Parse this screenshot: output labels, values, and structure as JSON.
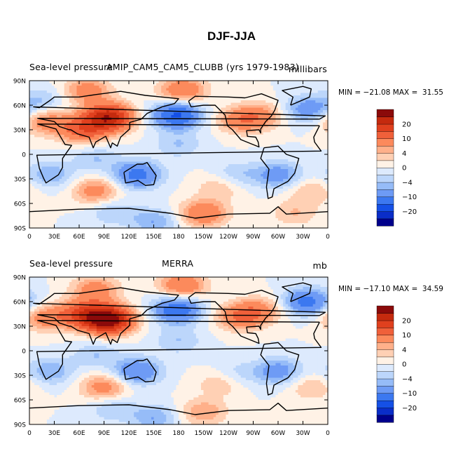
{
  "figure": {
    "title": "DJF-JJA"
  },
  "chart_data": [
    {
      "type": "heatmap",
      "title_left": "Sea-level pressure",
      "title_center": "AMIP_CAM5_CAM5_CLUBB (yrs 1979-1983)",
      "title_right": "millibars",
      "min_max_text": "MIN = −21.08 MAX =  31.55",
      "min": -21.08,
      "max": 31.55,
      "xlabel": "",
      "ylabel": "",
      "x_ticks": [
        "0",
        "30E",
        "60E",
        "90E",
        "120E",
        "150E",
        "180",
        "150W",
        "120W",
        "90W",
        "60W",
        "30W",
        "0"
      ],
      "y_ticks": [
        "90N",
        "60N",
        "30N",
        "0",
        "30S",
        "60S",
        "90S"
      ],
      "xlim": [
        0,
        360
      ],
      "ylim": [
        -90,
        90
      ],
      "colorbar_labels": [
        "20",
        "10",
        "4",
        "0",
        "−4",
        "−10",
        "−20"
      ],
      "colorbar_levels": [
        -25,
        -20,
        -15,
        -10,
        -6,
        -4,
        -2,
        0,
        2,
        4,
        6,
        10,
        15,
        20,
        25
      ],
      "colorbar_colors": [
        "#00008b",
        "#0a2dc8",
        "#1550e6",
        "#3c78f0",
        "#6e9bf5",
        "#96bcf8",
        "#bcd6fb",
        "#ddeafd",
        "#fff2e6",
        "#ffd0b4",
        "#ffb08a",
        "#fc8a5c",
        "#f0603a",
        "#e0401e",
        "#c52a0e",
        "#8b0a0a"
      ],
      "features": [
        {
          "lon": 95,
          "lat": 45,
          "value": 24
        },
        {
          "lon": 65,
          "lat": 30,
          "value": 12
        },
        {
          "lon": 20,
          "lat": 40,
          "value": 8
        },
        {
          "lon": 255,
          "lat": 42,
          "value": 8
        },
        {
          "lon": 280,
          "lat": 48,
          "value": 6
        },
        {
          "lon": 185,
          "lat": 78,
          "value": 10
        },
        {
          "lon": 70,
          "lat": 78,
          "value": 8
        },
        {
          "lon": 178,
          "lat": 48,
          "value": -16
        },
        {
          "lon": 335,
          "lat": 55,
          "value": -8
        },
        {
          "lon": 15,
          "lat": 65,
          "value": -4
        },
        {
          "lon": 180,
          "lat": 12,
          "value": -4
        },
        {
          "lon": 80,
          "lat": -5,
          "value": -4
        },
        {
          "lon": 130,
          "lat": -25,
          "value": -12
        },
        {
          "lon": 25,
          "lat": -25,
          "value": -6
        },
        {
          "lon": 300,
          "lat": -25,
          "value": -8
        },
        {
          "lon": 250,
          "lat": -25,
          "value": -4
        },
        {
          "lon": 80,
          "lat": -45,
          "value": 8
        },
        {
          "lon": 230,
          "lat": -40,
          "value": 4
        },
        {
          "lon": 340,
          "lat": -45,
          "value": 4
        },
        {
          "lon": 100,
          "lat": -70,
          "value": -4
        },
        {
          "lon": 210,
          "lat": -72,
          "value": 10
        },
        {
          "lon": 320,
          "lat": -72,
          "value": 4
        },
        {
          "lon": 150,
          "lat": -82,
          "value": -6
        }
      ]
    },
    {
      "type": "heatmap",
      "title_left": "Sea-level pressure",
      "title_center": "MERRA",
      "title_right": "mb",
      "min_max_text": "MIN = −17.10 MAX =  34.59",
      "min": -17.1,
      "max": 34.59,
      "xlabel": "",
      "ylabel": "",
      "x_ticks": [
        "0",
        "30E",
        "60E",
        "90E",
        "120E",
        "150E",
        "180",
        "150W",
        "120W",
        "90W",
        "60W",
        "30W",
        "0"
      ],
      "y_ticks": [
        "90N",
        "60N",
        "30N",
        "0",
        "30S",
        "60S",
        "90S"
      ],
      "xlim": [
        0,
        360
      ],
      "ylim": [
        -90,
        90
      ],
      "colorbar_labels": [
        "20",
        "10",
        "4",
        "0",
        "−4",
        "−10",
        "−20"
      ],
      "colorbar_levels": [
        -25,
        -20,
        -15,
        -10,
        -6,
        -4,
        -2,
        0,
        2,
        4,
        6,
        10,
        15,
        20,
        25
      ],
      "colorbar_colors": [
        "#00008b",
        "#0a2dc8",
        "#1550e6",
        "#3c78f0",
        "#6e9bf5",
        "#96bcf8",
        "#bcd6fb",
        "#ddeafd",
        "#fff2e6",
        "#ffd0b4",
        "#ffb08a",
        "#fc8a5c",
        "#f0603a",
        "#e0401e",
        "#c52a0e",
        "#8b0a0a"
      ],
      "features": [
        {
          "lon": 95,
          "lat": 38,
          "value": 30
        },
        {
          "lon": 65,
          "lat": 45,
          "value": 14
        },
        {
          "lon": 20,
          "lat": 40,
          "value": 8
        },
        {
          "lon": 255,
          "lat": 42,
          "value": 10
        },
        {
          "lon": 280,
          "lat": 50,
          "value": 6
        },
        {
          "lon": 185,
          "lat": 80,
          "value": 10
        },
        {
          "lon": 80,
          "lat": 75,
          "value": 8
        },
        {
          "lon": 178,
          "lat": 50,
          "value": -14
        },
        {
          "lon": 335,
          "lat": 60,
          "value": -12
        },
        {
          "lon": 180,
          "lat": 12,
          "value": -4
        },
        {
          "lon": 80,
          "lat": -5,
          "value": -4
        },
        {
          "lon": 130,
          "lat": -25,
          "value": -10
        },
        {
          "lon": 25,
          "lat": -25,
          "value": -6
        },
        {
          "lon": 300,
          "lat": -25,
          "value": -8
        },
        {
          "lon": 250,
          "lat": -28,
          "value": -3
        },
        {
          "lon": 90,
          "lat": -45,
          "value": 8
        },
        {
          "lon": 230,
          "lat": -40,
          "value": 4
        },
        {
          "lon": 340,
          "lat": -45,
          "value": 4
        },
        {
          "lon": 100,
          "lat": -70,
          "value": -4
        },
        {
          "lon": 210,
          "lat": -75,
          "value": 6
        },
        {
          "lon": 150,
          "lat": -82,
          "value": -6
        }
      ]
    }
  ]
}
